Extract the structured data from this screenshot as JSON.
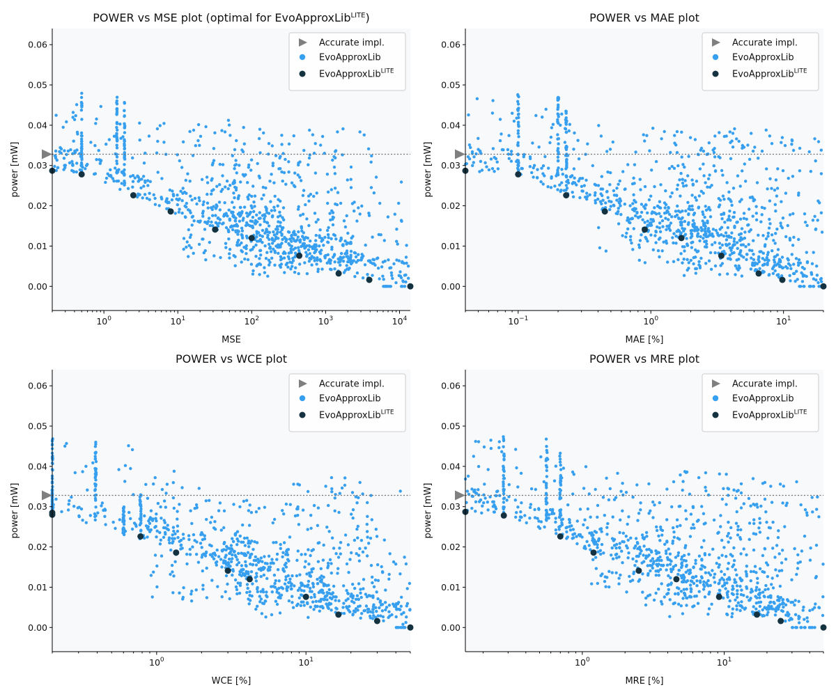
{
  "colors": {
    "evo": "#379fef",
    "lite": "#143240",
    "accurate": "#7f7f7f",
    "plot_bg": "#f7f9fb",
    "ref_line": "#6f6f6f"
  },
  "legend": {
    "accurate": "Accurate impl.",
    "evo": "EvoApproxLib",
    "lite_base": "EvoApproxLib",
    "lite_sup": "LITE"
  },
  "chart_data": [
    {
      "type": "scatter",
      "title": "POWER vs MSE plot (optimal for EvoApproxLib",
      "title_sup": "LITE",
      "title_tail": ")",
      "xlabel": "MSE",
      "ylabel": "power [mW]",
      "xscale": "log",
      "xlim": [
        0.2,
        14000
      ],
      "ylim": [
        -0.006,
        0.064
      ],
      "yticks": [
        "0.00",
        "0.01",
        "0.02",
        "0.03",
        "0.04",
        "0.05",
        "0.06"
      ],
      "xtick_decades": [
        0,
        1,
        2,
        3,
        4
      ],
      "accurate_power": 0.0328,
      "legend_position": "top-right",
      "grid": false,
      "lite_points": [
        [
          0.2,
          0.0287
        ],
        [
          0.5,
          0.0278
        ],
        [
          2.5,
          0.0226
        ],
        [
          8,
          0.0186
        ],
        [
          32,
          0.0141
        ],
        [
          100,
          0.012
        ],
        [
          440,
          0.0076
        ],
        [
          1500,
          0.0032
        ],
        [
          3900,
          0.0016
        ],
        [
          14000,
          0.0
        ]
      ],
      "cloud": {
        "columns": [
          [
            0.5,
            0.028,
            0.048
          ],
          [
            1.5,
            0.026,
            0.047
          ],
          [
            1.9,
            0.025,
            0.046
          ]
        ],
        "blobs": [
          [
            30,
            0.0265,
            3,
            0.03,
            40
          ],
          [
            35,
            0.0165,
            3,
            0.02,
            80
          ],
          [
            110,
            0.0125,
            2.5,
            0.015,
            90
          ],
          [
            120,
            0.025,
            2.5,
            0.03,
            60
          ],
          [
            500,
            0.0235,
            3,
            0.03,
            60
          ],
          [
            300,
            0.0085,
            3,
            0.012,
            80
          ],
          [
            800,
            0.008,
            3,
            0.009,
            60
          ],
          [
            1200,
            0.025,
            4,
            0.03,
            40
          ],
          [
            6000,
            0.025,
            5,
            0.03,
            30
          ]
        ],
        "floor": [
          [
            6000,
            14000,
            0.0
          ]
        ]
      }
    },
    {
      "type": "scatter",
      "title": "POWER vs MAE plot",
      "xlabel": "MAE [%]",
      "ylabel": "power [mW]",
      "xscale": "log",
      "xlim": [
        0.04,
        20
      ],
      "ylim": [
        -0.006,
        0.064
      ],
      "yticks": [
        "0.00",
        "0.01",
        "0.02",
        "0.03",
        "0.04",
        "0.05",
        "0.06"
      ],
      "xtick_decades": [
        -1,
        0,
        1
      ],
      "accurate_power": 0.0328,
      "legend_position": "top-right",
      "grid": false,
      "lite_points": [
        [
          0.04,
          0.0287
        ],
        [
          0.1,
          0.0278
        ],
        [
          0.23,
          0.0226
        ],
        [
          0.45,
          0.0186
        ],
        [
          0.9,
          0.0141
        ],
        [
          1.7,
          0.012
        ],
        [
          3.4,
          0.0076
        ],
        [
          6.5,
          0.0032
        ],
        [
          9.8,
          0.0016
        ],
        [
          20,
          0.0
        ]
      ],
      "cloud": {
        "columns": [
          [
            0.1,
            0.028,
            0.048
          ],
          [
            0.2,
            0.026,
            0.047
          ],
          [
            0.23,
            0.025,
            0.044
          ]
        ],
        "blobs": [
          [
            0.9,
            0.017,
            2.5,
            0.02,
            80
          ],
          [
            1.8,
            0.027,
            2.5,
            0.025,
            60
          ],
          [
            2,
            0.0125,
            2.5,
            0.015,
            90
          ],
          [
            3.6,
            0.025,
            2.5,
            0.03,
            60
          ],
          [
            4,
            0.0085,
            2.5,
            0.012,
            80
          ],
          [
            7,
            0.024,
            3,
            0.03,
            60
          ],
          [
            10,
            0.022,
            3,
            0.03,
            40
          ]
        ],
        "floor": [
          [
            13,
            20,
            0.0
          ]
        ]
      }
    },
    {
      "type": "scatter",
      "title": "POWER vs WCE plot",
      "xlabel": "WCE [%]",
      "ylabel": "power [mW]",
      "xscale": "log",
      "xlim": [
        0.2,
        50
      ],
      "ylim": [
        -0.006,
        0.064
      ],
      "yticks": [
        "0.00",
        "0.01",
        "0.02",
        "0.03",
        "0.04",
        "0.05",
        "0.06"
      ],
      "xtick_decades": [
        0,
        1
      ],
      "accurate_power": 0.0328,
      "legend_position": "top-right",
      "grid": false,
      "lite_points": [
        [
          0.2,
          0.0285
        ],
        [
          0.2,
          0.028
        ],
        [
          0.78,
          0.0226
        ],
        [
          1.35,
          0.0186
        ],
        [
          3,
          0.0141
        ],
        [
          4.2,
          0.012
        ],
        [
          10,
          0.0076
        ],
        [
          16.5,
          0.0032
        ],
        [
          30,
          0.0016
        ],
        [
          50,
          0.0
        ]
      ],
      "cloud": {
        "columns": [
          [
            0.2,
            0.028,
            0.048
          ],
          [
            0.39,
            0.026,
            0.047
          ],
          [
            0.6,
            0.023,
            0.03
          ],
          [
            0.78,
            0.022,
            0.034
          ]
        ],
        "blobs": [
          [
            2,
            0.019,
            2.2,
            0.025,
            80
          ],
          [
            4,
            0.0145,
            2,
            0.015,
            80
          ],
          [
            7.5,
            0.0125,
            2,
            0.02,
            60
          ],
          [
            8,
            0.008,
            2,
            0.006,
            60
          ],
          [
            14,
            0.025,
            2,
            0.025,
            60
          ],
          [
            17,
            0.0065,
            1.8,
            0.008,
            40
          ],
          [
            28,
            0.022,
            2,
            0.025,
            40
          ]
        ],
        "floor": [
          [
            40,
            50,
            0.0
          ]
        ]
      }
    },
    {
      "type": "scatter",
      "title": "POWER vs MRE plot",
      "xlabel": "MRE [%]",
      "ylabel": "power [mW]",
      "xscale": "log",
      "xlim": [
        0.15,
        50
      ],
      "ylim": [
        -0.006,
        0.064
      ],
      "yticks": [
        "0.00",
        "0.01",
        "0.02",
        "0.03",
        "0.04",
        "0.05",
        "0.06"
      ],
      "xtick_decades": [
        0,
        1
      ],
      "accurate_power": 0.0328,
      "legend_position": "top-right",
      "grid": false,
      "lite_points": [
        [
          0.15,
          0.0287
        ],
        [
          0.28,
          0.0278
        ],
        [
          0.7,
          0.0226
        ],
        [
          1.2,
          0.0186
        ],
        [
          2.5,
          0.0141
        ],
        [
          4.6,
          0.012
        ],
        [
          9.2,
          0.0076
        ],
        [
          17,
          0.0032
        ],
        [
          25,
          0.0016
        ],
        [
          50,
          0.0
        ]
      ],
      "cloud": {
        "columns": [
          [
            0.28,
            0.028,
            0.048
          ],
          [
            0.56,
            0.026,
            0.047
          ],
          [
            0.7,
            0.025,
            0.044
          ]
        ],
        "blobs": [
          [
            2.8,
            0.017,
            2.5,
            0.02,
            80
          ],
          [
            3,
            0.027,
            2.5,
            0.025,
            60
          ],
          [
            5.5,
            0.0125,
            2.5,
            0.015,
            80
          ],
          [
            10,
            0.0085,
            2.5,
            0.012,
            80
          ],
          [
            12,
            0.027,
            2.5,
            0.025,
            70
          ],
          [
            30,
            0.024,
            2.5,
            0.025,
            60
          ]
        ],
        "floor": [
          [
            30,
            50,
            0.0
          ]
        ]
      }
    }
  ]
}
